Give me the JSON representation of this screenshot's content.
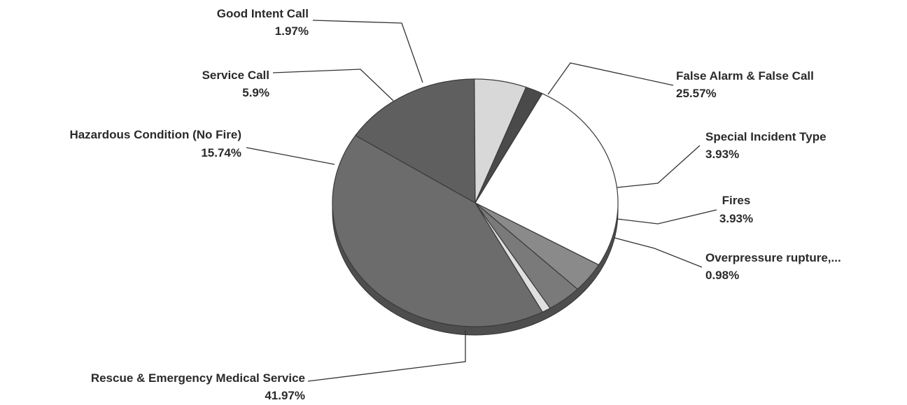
{
  "chart_data": {
    "type": "pie",
    "title": "",
    "slices": [
      {
        "label": "False Alarm & False Call",
        "value": 25.57,
        "value_label": "25.57%",
        "color": "#ffffff"
      },
      {
        "label": "Special Incident Type",
        "value": 3.93,
        "value_label": "3.93%",
        "color": "#8a8a8a"
      },
      {
        "label": "Fires",
        "value": 3.93,
        "value_label": "3.93%",
        "color": "#7a7a7a"
      },
      {
        "label": "Overpressure  rupture,...",
        "value": 0.98,
        "value_label": "0.98%",
        "color": "#e0e0e0"
      },
      {
        "label": "Rescue & Emergency Medical Service",
        "value": 41.97,
        "value_label": "41.97%",
        "color": "#6c6c6c"
      },
      {
        "label": "Hazardous Condition (No Fire)",
        "value": 15.74,
        "value_label": "15.74%",
        "color": "#5f5f5f"
      },
      {
        "label": "Service Call",
        "value": 5.9,
        "value_label": "5.9%",
        "color": "#d8d8d8"
      },
      {
        "label": "Good Intent Call",
        "value": 1.97,
        "value_label": "1.97%",
        "color": "#4a4a4a"
      }
    ]
  }
}
